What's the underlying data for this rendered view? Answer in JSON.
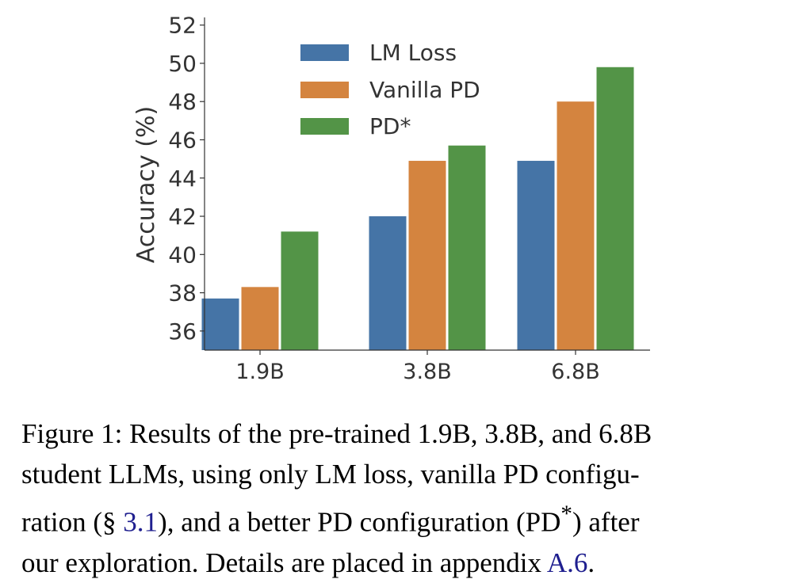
{
  "chart_data": {
    "type": "bar",
    "title": "",
    "xlabel": "",
    "ylabel": "Accuracy (%)",
    "ylim": [
      35,
      52.4
    ],
    "yticks": [
      36,
      38,
      40,
      42,
      44,
      46,
      48,
      50,
      52
    ],
    "categories": [
      "1.9B",
      "3.8B",
      "6.8B"
    ],
    "series": [
      {
        "name": "LM Loss",
        "values": [
          37.7,
          42.0,
          44.9
        ],
        "color": "#4574a6"
      },
      {
        "name": "Vanilla PD",
        "values": [
          38.3,
          44.9,
          48.0
        ],
        "color": "#d4843f"
      },
      {
        "name": "PD*",
        "values": [
          41.2,
          45.7,
          49.8
        ],
        "color": "#539447"
      }
    ],
    "legend_position": "top-center",
    "grid": false
  },
  "caption": {
    "label": "Figure 1:",
    "line1_rest": "Results of the pre-trained 1.9B, 3.8B, and 6.8B",
    "line2": "student LLMs, using only LM loss, vanilla PD configu-",
    "line3_a": "ration (§ ",
    "line3_link": "3.1",
    "line3_b": "), and a better PD configuration (PD",
    "line3_sup": "*",
    "line3_c": ") after",
    "line4_a": "our exploration. Details are placed in appendix ",
    "line4_link": "A.6",
    "line4_b": "."
  }
}
